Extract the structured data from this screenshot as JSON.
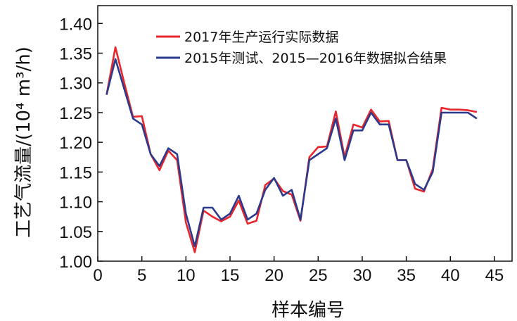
{
  "chart_data": {
    "type": "line",
    "xlabel": "样本编号",
    "ylabel": "工艺气流量/(10⁴ m³/h)",
    "xlim": [
      0,
      47
    ],
    "ylim": [
      1.0,
      1.43
    ],
    "xticks": [
      0,
      5,
      10,
      15,
      20,
      25,
      30,
      35,
      40,
      45
    ],
    "yticks": [
      1.0,
      1.05,
      1.1,
      1.15,
      1.2,
      1.25,
      1.3,
      1.35,
      1.4
    ],
    "ytick_labels": [
      "1.00",
      "1.05",
      "1.10",
      "1.15",
      "1.20",
      "1.25",
      "1.30",
      "1.35",
      "1.40"
    ],
    "grid": false,
    "legend_position": "top-right",
    "x": [
      1,
      2,
      3,
      4,
      5,
      6,
      7,
      8,
      9,
      10,
      11,
      12,
      13,
      14,
      15,
      16,
      17,
      18,
      19,
      20,
      21,
      22,
      23,
      24,
      25,
      26,
      27,
      28,
      29,
      30,
      31,
      32,
      33,
      34,
      35,
      36,
      37,
      38,
      39,
      40,
      41,
      42,
      43
    ],
    "series": [
      {
        "name": "2017年生产运行实际数据",
        "color": "#e8262b",
        "values": [
          1.28,
          1.36,
          1.3,
          1.243,
          1.244,
          1.18,
          1.153,
          1.186,
          1.17,
          1.065,
          1.015,
          1.085,
          1.075,
          1.067,
          1.075,
          1.102,
          1.063,
          1.068,
          1.128,
          1.139,
          1.118,
          1.112,
          1.068,
          1.175,
          1.192,
          1.193,
          1.252,
          1.175,
          1.23,
          1.225,
          1.255,
          1.235,
          1.236,
          1.17,
          1.17,
          1.122,
          1.117,
          1.155,
          1.258,
          1.255,
          1.255,
          1.254,
          1.251
        ]
      },
      {
        "name": "2015年测试、2015—2016年数据拟合结果",
        "color": "#2b3a8c",
        "values": [
          1.28,
          1.34,
          1.29,
          1.24,
          1.23,
          1.18,
          1.16,
          1.19,
          1.18,
          1.08,
          1.025,
          1.09,
          1.09,
          1.07,
          1.08,
          1.11,
          1.07,
          1.08,
          1.12,
          1.14,
          1.11,
          1.12,
          1.07,
          1.17,
          1.18,
          1.19,
          1.24,
          1.17,
          1.22,
          1.22,
          1.25,
          1.23,
          1.23,
          1.17,
          1.17,
          1.13,
          1.12,
          1.15,
          1.25,
          1.25,
          1.25,
          1.25,
          1.24
        ]
      }
    ]
  }
}
